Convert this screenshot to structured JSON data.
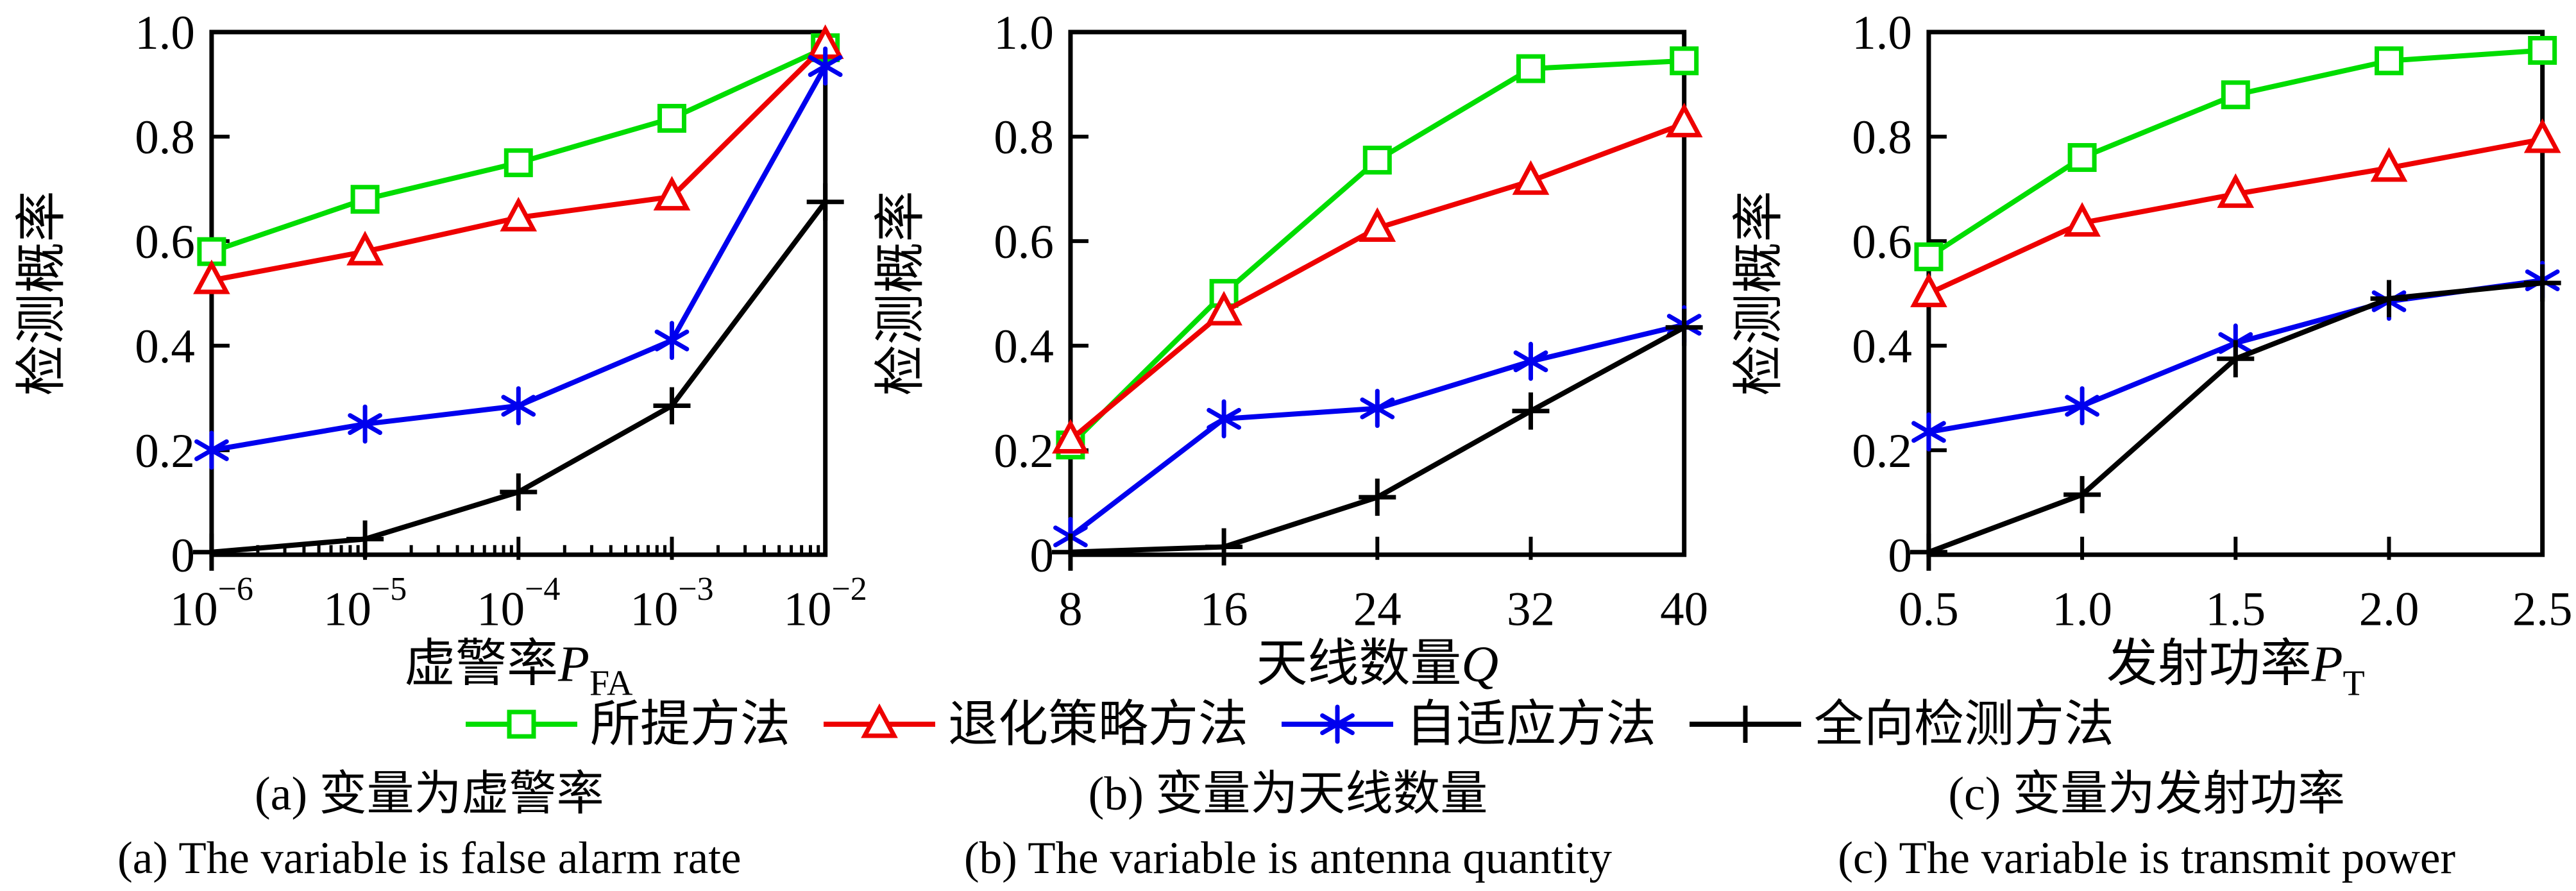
{
  "figure": {
    "ylabel": "检测概率",
    "y_ticks": [
      0,
      0.2,
      0.4,
      0.6,
      0.8,
      1.0
    ],
    "y_tick_labels": [
      "0",
      "0.2",
      "0.4",
      "0.6",
      "0.8",
      "1.0"
    ],
    "colors": {
      "proposed": "#00dd00",
      "degraded": "#ee0000",
      "adaptive": "#0000ee",
      "omni": "#000000"
    }
  },
  "legend": {
    "items": [
      {
        "label": "所提方法",
        "color": "#00dd00",
        "marker": "square"
      },
      {
        "label": "退化策略方法",
        "color": "#ee0000",
        "marker": "triangle"
      },
      {
        "label": "自适应方法",
        "color": "#0000ee",
        "marker": "asterisk"
      },
      {
        "label": "全向检测方法",
        "color": "#000000",
        "marker": "plus"
      }
    ]
  },
  "captions": [
    {
      "zh": "(a) 变量为虚警率",
      "en": "(a) The variable is false alarm rate"
    },
    {
      "zh": "(b) 变量为天线数量",
      "en": "(b) The variable is antenna quantity"
    },
    {
      "zh": "(c) 变量为发射功率",
      "en": "(c) The variable is transmit power"
    }
  ],
  "chart_data": [
    {
      "type": "line",
      "xscale": "log",
      "x": [
        1e-06,
        1e-05,
        0.0001,
        0.001,
        0.01
      ],
      "x_tick_labels": [
        {
          "base": "10",
          "exp": "−6"
        },
        {
          "base": "10",
          "exp": "−5"
        },
        {
          "base": "10",
          "exp": "−4"
        },
        {
          "base": "10",
          "exp": "−3"
        },
        {
          "base": "10",
          "exp": "−2"
        }
      ],
      "xlabel_text": "虚警率P_FA",
      "xlabel_parts": [
        {
          "t": "虚警率"
        },
        {
          "t": "P",
          "style": "italic"
        },
        {
          "t": "FA",
          "style": "sub"
        }
      ],
      "ylabel": "检测概率",
      "ylim": [
        0,
        1
      ],
      "series": [
        {
          "name": "所提方法",
          "color": "#00dd00",
          "marker": "square",
          "values": [
            0.58,
            0.68,
            0.75,
            0.835,
            0.97
          ]
        },
        {
          "name": "退化策略方法",
          "color": "#ee0000",
          "marker": "triangle",
          "values": [
            0.525,
            0.58,
            0.645,
            0.685,
            0.975
          ]
        },
        {
          "name": "自适应方法",
          "color": "#0000ee",
          "marker": "asterisk",
          "values": [
            0.2,
            0.25,
            0.285,
            0.41,
            0.935
          ]
        },
        {
          "name": "全向检测方法",
          "color": "#000000",
          "marker": "plus",
          "values": [
            0.005,
            0.03,
            0.12,
            0.285,
            0.675
          ]
        }
      ]
    },
    {
      "type": "line",
      "xscale": "linear",
      "x": [
        8,
        16,
        24,
        32,
        40
      ],
      "x_tick_labels": [
        "8",
        "16",
        "24",
        "32",
        "40"
      ],
      "xlabel_text": "天线数量Q",
      "xlabel_parts": [
        {
          "t": "天线数量"
        },
        {
          "t": "Q",
          "style": "italic"
        }
      ],
      "ylabel": "检测概率",
      "ylim": [
        0,
        1
      ],
      "series": [
        {
          "name": "所提方法",
          "color": "#00dd00",
          "marker": "square",
          "values": [
            0.21,
            0.5,
            0.755,
            0.93,
            0.945
          ]
        },
        {
          "name": "退化策略方法",
          "color": "#ee0000",
          "marker": "triangle",
          "values": [
            0.22,
            0.465,
            0.625,
            0.715,
            0.825
          ]
        },
        {
          "name": "自适应方法",
          "color": "#0000ee",
          "marker": "asterisk",
          "values": [
            0.035,
            0.26,
            0.28,
            0.37,
            0.44
          ]
        },
        {
          "name": "全向检测方法",
          "color": "#000000",
          "marker": "plus",
          "values": [
            0.005,
            0.015,
            0.11,
            0.275,
            0.435
          ]
        }
      ]
    },
    {
      "type": "line",
      "xscale": "linear",
      "x": [
        0.5,
        1.0,
        1.5,
        2.0,
        2.5
      ],
      "x_tick_labels": [
        "0.5",
        "1.0",
        "1.5",
        "2.0",
        "2.5"
      ],
      "xlabel_text": "发射功率P_T",
      "xlabel_parts": [
        {
          "t": "发射功率"
        },
        {
          "t": "P",
          "style": "italic"
        },
        {
          "t": "T",
          "style": "sub"
        }
      ],
      "ylabel": "检测概率",
      "ylim": [
        0,
        1
      ],
      "series": [
        {
          "name": "所提方法",
          "color": "#00dd00",
          "marker": "square",
          "values": [
            0.57,
            0.76,
            0.88,
            0.945,
            0.965
          ]
        },
        {
          "name": "退化策略方法",
          "color": "#ee0000",
          "marker": "triangle",
          "values": [
            0.5,
            0.635,
            0.69,
            0.74,
            0.795
          ]
        },
        {
          "name": "自适应方法",
          "color": "#0000ee",
          "marker": "asterisk",
          "values": [
            0.235,
            0.285,
            0.405,
            0.485,
            0.525
          ]
        },
        {
          "name": "全向检测方法",
          "color": "#000000",
          "marker": "plus",
          "values": [
            0.005,
            0.115,
            0.375,
            0.49,
            0.52
          ]
        }
      ]
    }
  ]
}
